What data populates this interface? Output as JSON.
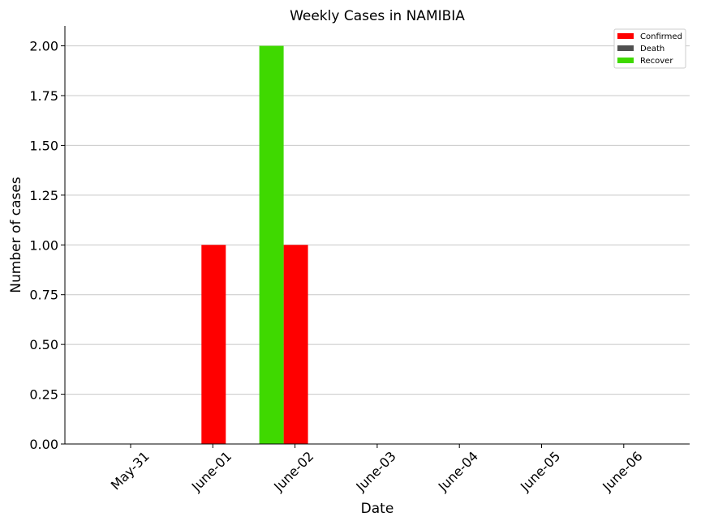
{
  "chart_data": {
    "type": "bar",
    "title": "Weekly Cases in NAMIBIA",
    "xlabel": "Date",
    "ylabel": "Number of cases",
    "categories": [
      "May-31",
      "June-01",
      "June-02",
      "June-03",
      "June-04",
      "June-05",
      "June-06"
    ],
    "series": [
      {
        "name": "Confirmed",
        "color": "#ff0000",
        "values": [
          0,
          1,
          1,
          0,
          0,
          0,
          0
        ]
      },
      {
        "name": "Death",
        "color": "#505050",
        "values": [
          0,
          0,
          0,
          0,
          0,
          0,
          0
        ]
      },
      {
        "name": "Recover",
        "color": "#3fd900",
        "values": [
          0,
          0,
          2,
          0,
          0,
          0,
          0
        ]
      }
    ],
    "ylim": [
      0,
      2.1
    ],
    "yticks": [
      "0.00",
      "0.25",
      "0.50",
      "0.75",
      "1.00",
      "1.25",
      "1.50",
      "1.75",
      "2.00"
    ],
    "grid": "horizontal",
    "legend_position": "top-right"
  }
}
